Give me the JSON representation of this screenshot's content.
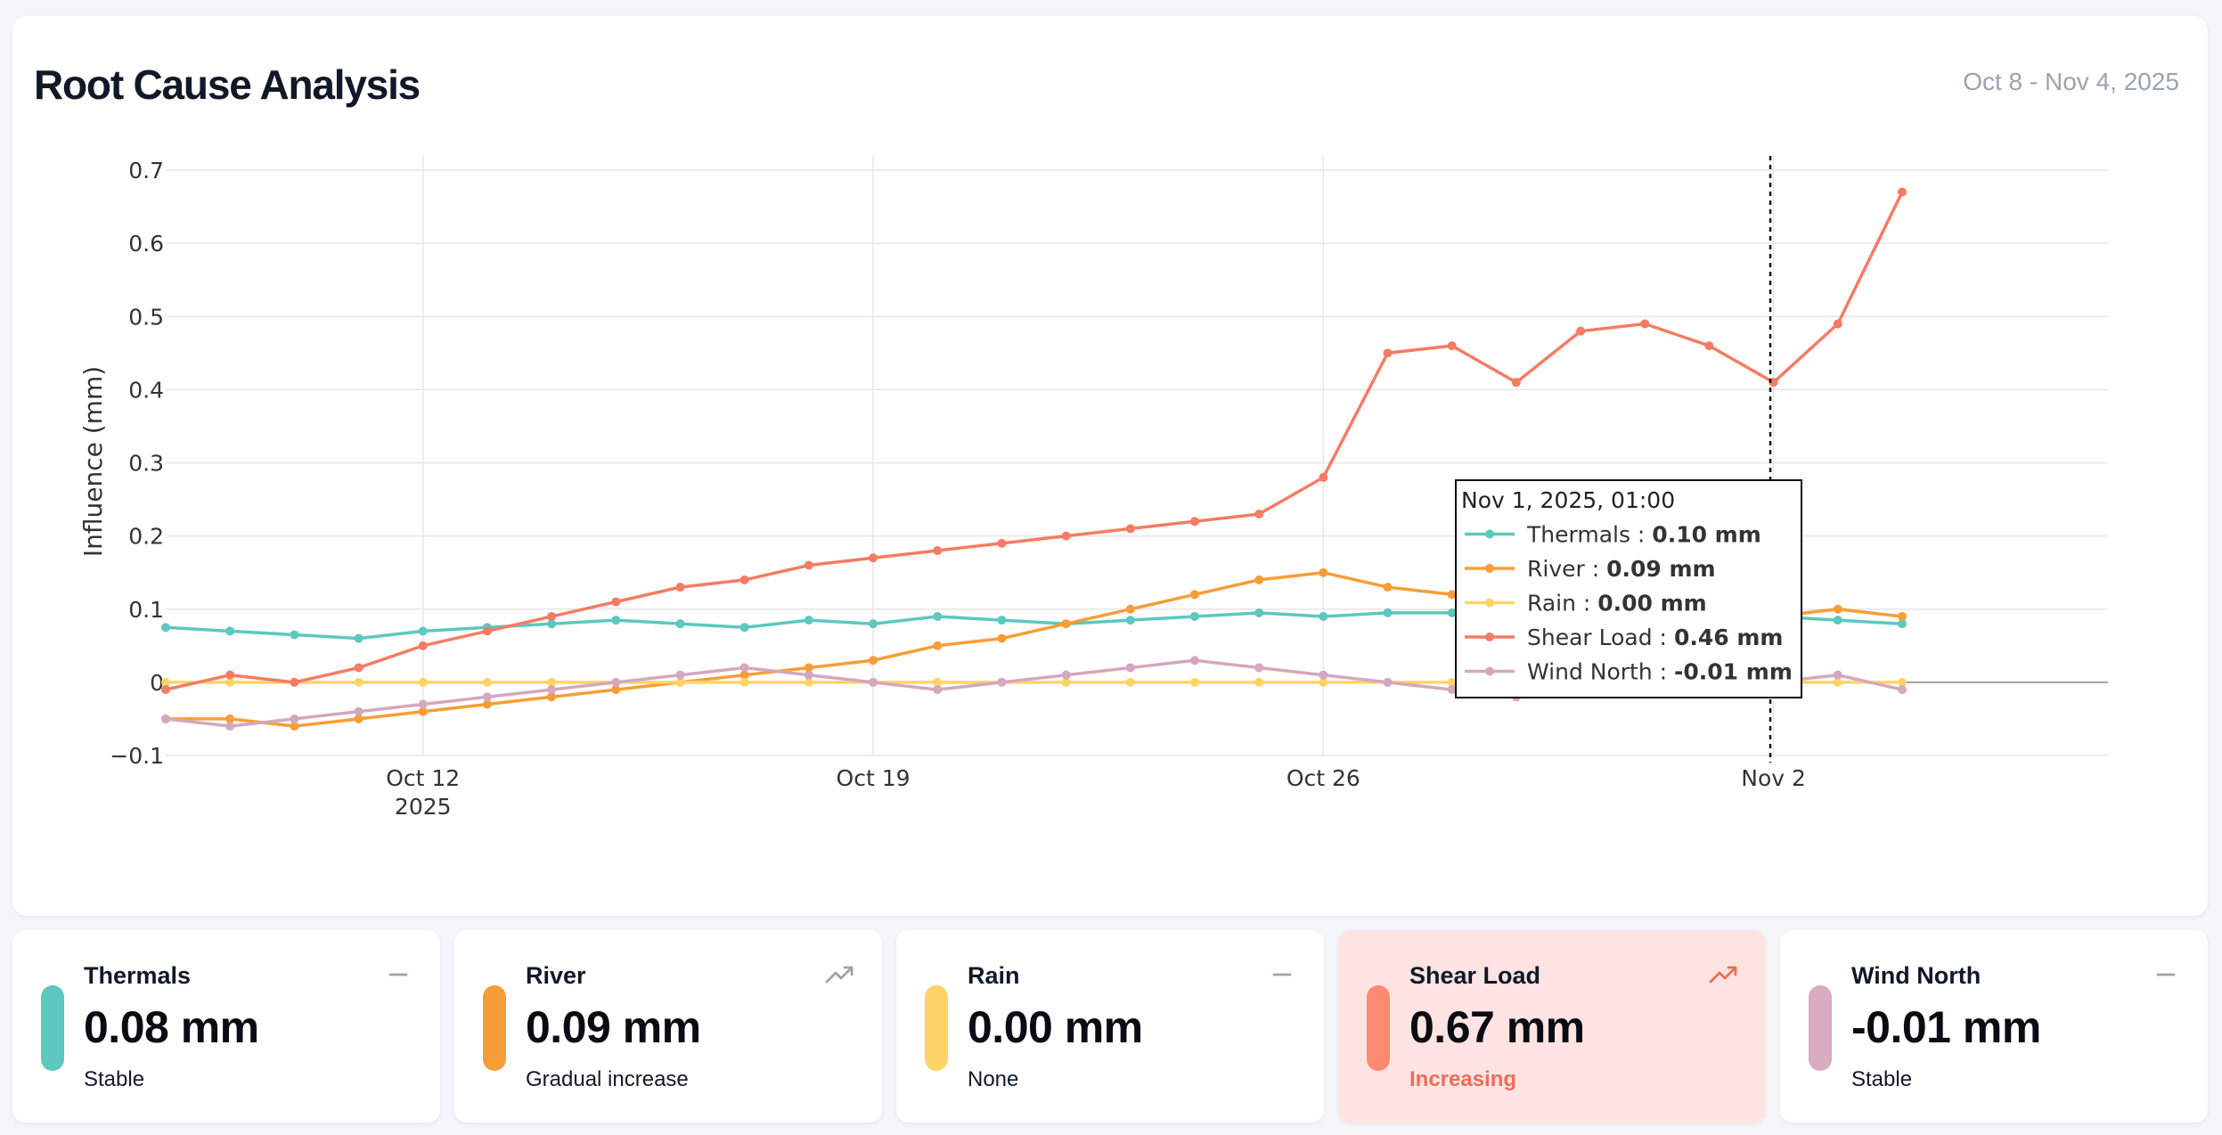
{
  "header": {
    "title": "Root Cause Analysis",
    "date_range": "Oct 8 - Nov 4, 2025"
  },
  "chart_data": {
    "type": "line",
    "title": "Root Cause Analysis",
    "ylabel": "Influence (mm)",
    "xlabel": "",
    "ylim": [
      -0.1,
      0.7
    ],
    "y_ticks": [
      {
        "value": 0.7,
        "label": "0.7"
      },
      {
        "value": 0.6,
        "label": "0.6"
      },
      {
        "value": 0.5,
        "label": "0.5"
      },
      {
        "value": 0.4,
        "label": "0.4"
      },
      {
        "value": 0.3,
        "label": "0.3"
      },
      {
        "value": 0.2,
        "label": "0.2"
      },
      {
        "value": 0.1,
        "label": "0.1"
      },
      {
        "value": 0,
        "label": "0"
      },
      {
        "value": -0.1,
        "label": "−0.1"
      }
    ],
    "x_range_days": [
      -4.0,
      26.2
    ],
    "x_ticks": [
      {
        "day": 0,
        "label": "Oct 12",
        "sublabel": "2025"
      },
      {
        "day": 7,
        "label": "Oct 19",
        "sublabel": ""
      },
      {
        "day": 14,
        "label": "Oct 26",
        "sublabel": ""
      },
      {
        "day": 21,
        "label": "Nov 2",
        "sublabel": ""
      }
    ],
    "x_days": [
      -4,
      -3,
      -2,
      -1,
      0,
      1,
      2,
      3,
      4,
      5,
      6,
      7,
      8,
      9,
      10,
      11,
      12,
      13,
      14,
      15,
      16,
      17,
      18,
      19,
      20,
      21,
      22,
      23
    ],
    "series": [
      {
        "name": "Thermals",
        "color": "#5cc8be",
        "values": [
          0.075,
          0.07,
          0.065,
          0.06,
          0.07,
          0.075,
          0.08,
          0.085,
          0.08,
          0.075,
          0.085,
          0.08,
          0.09,
          0.085,
          0.08,
          0.085,
          0.09,
          0.095,
          0.09,
          0.095,
          0.095,
          0.09,
          0.09,
          0.1,
          0.095,
          0.09,
          0.085,
          0.08
        ]
      },
      {
        "name": "River",
        "color": "#f79d37",
        "values": [
          -0.05,
          -0.05,
          -0.06,
          -0.05,
          -0.04,
          -0.03,
          -0.02,
          -0.01,
          0.0,
          0.01,
          0.02,
          0.03,
          0.05,
          0.06,
          0.08,
          0.1,
          0.12,
          0.14,
          0.15,
          0.13,
          0.12,
          0.1,
          0.1,
          0.09,
          0.09,
          0.09,
          0.1,
          0.09
        ]
      },
      {
        "name": "Rain",
        "color": "#ffd466",
        "values": [
          0,
          0,
          0,
          0,
          0,
          0,
          0,
          0,
          0,
          0,
          0,
          0,
          0,
          0,
          0,
          0,
          0,
          0,
          0,
          0,
          0,
          0,
          0,
          0,
          0,
          0,
          0,
          0
        ]
      },
      {
        "name": "Shear Load",
        "color": "#f47c64",
        "values": [
          -0.01,
          0.01,
          0.0,
          0.02,
          0.05,
          0.07,
          0.09,
          0.11,
          0.13,
          0.14,
          0.16,
          0.17,
          0.18,
          0.19,
          0.2,
          0.21,
          0.22,
          0.23,
          0.28,
          0.45,
          0.46,
          0.41,
          0.48,
          0.49,
          0.46,
          0.41,
          0.49,
          0.67
        ]
      },
      {
        "name": "Wind North",
        "color": "#d4a7bf",
        "values": [
          -0.05,
          -0.06,
          -0.05,
          -0.04,
          -0.03,
          -0.02,
          -0.01,
          0.0,
          0.01,
          0.02,
          0.01,
          0.0,
          -0.01,
          0.0,
          0.01,
          0.02,
          0.03,
          0.02,
          0.01,
          0.0,
          -0.01,
          -0.02,
          -0.01,
          -0.01,
          -0.01,
          0.0,
          0.01,
          -0.01
        ]
      }
    ],
    "hover_day": 20.95,
    "tooltip": {
      "title": "Nov 1, 2025, 01:00",
      "rows": [
        {
          "name": "Thermals",
          "value": "0.10 mm"
        },
        {
          "name": "River",
          "value": "0.09 mm"
        },
        {
          "name": "Rain",
          "value": "0.00 mm"
        },
        {
          "name": "Shear Load",
          "value": "0.46 mm"
        },
        {
          "name": "Wind North",
          "value": "-0.01 mm"
        }
      ]
    }
  },
  "tiles": [
    {
      "name": "Thermals",
      "value": "0.08 mm",
      "status": "Stable",
      "color": "#5cc8be",
      "trend": "flat",
      "alert": false
    },
    {
      "name": "River",
      "value": "0.09 mm",
      "status": "Gradual increase",
      "color": "#f79d37",
      "trend": "up",
      "alert": false
    },
    {
      "name": "Rain",
      "value": "0.00 mm",
      "status": "None",
      "color": "#ffd466",
      "trend": "flat",
      "alert": false
    },
    {
      "name": "Shear Load",
      "value": "0.67 mm",
      "status": "Increasing",
      "color": "#ff8a73",
      "trend": "up",
      "alert": true
    },
    {
      "name": "Wind North",
      "value": "-0.01 mm",
      "status": "Stable",
      "color": "#d8abc1",
      "trend": "flat",
      "alert": false
    }
  ],
  "colors": {
    "grid": "#e6e6e6",
    "axis_text": "#333333",
    "alert_text": "#ef6c55",
    "trend_icon": "#9ca3af",
    "alert_icon": "#ef6c55"
  }
}
